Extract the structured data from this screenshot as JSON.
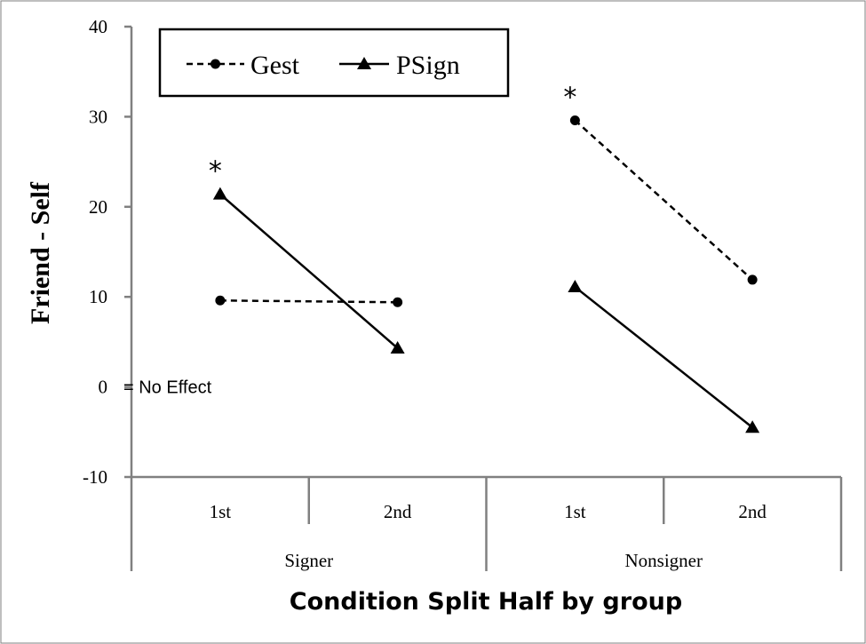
{
  "chart_data": {
    "type": "line",
    "title": "",
    "ylabel": "Friend - Self",
    "xlabel": "Condition Split Half by group",
    "ylim": [
      -10,
      40
    ],
    "yticks": [
      40,
      30,
      20,
      10,
      0,
      -10
    ],
    "grid": false,
    "legend_position": "top-left",
    "groups": [
      {
        "name": "Signer",
        "categories": [
          "1st",
          "2nd"
        ]
      },
      {
        "name": "Nonsigner",
        "categories": [
          "1st",
          "2nd"
        ]
      }
    ],
    "series": [
      {
        "name": "Gest",
        "line_style": "dashed",
        "marker": "circle",
        "values": [
          [
            9.6,
            9.4
          ],
          [
            29.6,
            11.9
          ]
        ]
      },
      {
        "name": "PSign",
        "line_style": "solid",
        "marker": "triangle",
        "values": [
          [
            21.4,
            4.3
          ],
          [
            11.1,
            -4.5
          ]
        ]
      }
    ],
    "annotations": [
      {
        "text": "= No Effect",
        "x_index": 0,
        "y": 0
      },
      {
        "text": "*",
        "x_index": 0,
        "y": 21.4
      },
      {
        "text": "*",
        "x_index": 2,
        "y": 29.6
      }
    ]
  }
}
